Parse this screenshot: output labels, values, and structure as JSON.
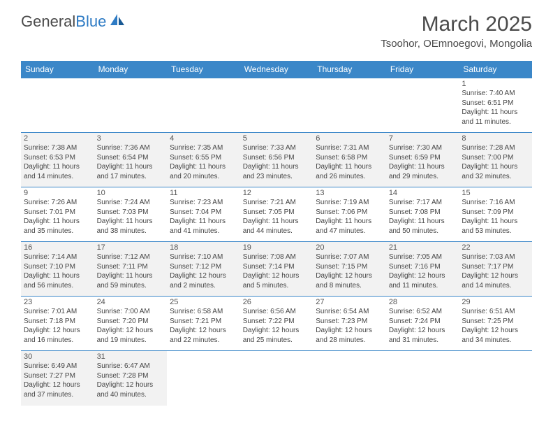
{
  "logo": {
    "text_general": "General",
    "text_blue": "Blue"
  },
  "header": {
    "month_title": "March 2025",
    "location": "Tsoohor, OEmnoegovi, Mongolia"
  },
  "colors": {
    "header_bg": "#3b87c8",
    "header_text": "#ffffff",
    "alt_bg": "#f2f2f2",
    "text": "#444444",
    "border": "#3b87c8"
  },
  "day_names": [
    "Sunday",
    "Monday",
    "Tuesday",
    "Wednesday",
    "Thursday",
    "Friday",
    "Saturday"
  ],
  "weeks": [
    [
      null,
      null,
      null,
      null,
      null,
      null,
      {
        "num": "1",
        "sunrise": "Sunrise: 7:40 AM",
        "sunset": "Sunset: 6:51 PM",
        "daylight": "Daylight: 11 hours and 11 minutes."
      }
    ],
    [
      {
        "num": "2",
        "sunrise": "Sunrise: 7:38 AM",
        "sunset": "Sunset: 6:53 PM",
        "daylight": "Daylight: 11 hours and 14 minutes."
      },
      {
        "num": "3",
        "sunrise": "Sunrise: 7:36 AM",
        "sunset": "Sunset: 6:54 PM",
        "daylight": "Daylight: 11 hours and 17 minutes."
      },
      {
        "num": "4",
        "sunrise": "Sunrise: 7:35 AM",
        "sunset": "Sunset: 6:55 PM",
        "daylight": "Daylight: 11 hours and 20 minutes."
      },
      {
        "num": "5",
        "sunrise": "Sunrise: 7:33 AM",
        "sunset": "Sunset: 6:56 PM",
        "daylight": "Daylight: 11 hours and 23 minutes."
      },
      {
        "num": "6",
        "sunrise": "Sunrise: 7:31 AM",
        "sunset": "Sunset: 6:58 PM",
        "daylight": "Daylight: 11 hours and 26 minutes."
      },
      {
        "num": "7",
        "sunrise": "Sunrise: 7:30 AM",
        "sunset": "Sunset: 6:59 PM",
        "daylight": "Daylight: 11 hours and 29 minutes."
      },
      {
        "num": "8",
        "sunrise": "Sunrise: 7:28 AM",
        "sunset": "Sunset: 7:00 PM",
        "daylight": "Daylight: 11 hours and 32 minutes."
      }
    ],
    [
      {
        "num": "9",
        "sunrise": "Sunrise: 7:26 AM",
        "sunset": "Sunset: 7:01 PM",
        "daylight": "Daylight: 11 hours and 35 minutes."
      },
      {
        "num": "10",
        "sunrise": "Sunrise: 7:24 AM",
        "sunset": "Sunset: 7:03 PM",
        "daylight": "Daylight: 11 hours and 38 minutes."
      },
      {
        "num": "11",
        "sunrise": "Sunrise: 7:23 AM",
        "sunset": "Sunset: 7:04 PM",
        "daylight": "Daylight: 11 hours and 41 minutes."
      },
      {
        "num": "12",
        "sunrise": "Sunrise: 7:21 AM",
        "sunset": "Sunset: 7:05 PM",
        "daylight": "Daylight: 11 hours and 44 minutes."
      },
      {
        "num": "13",
        "sunrise": "Sunrise: 7:19 AM",
        "sunset": "Sunset: 7:06 PM",
        "daylight": "Daylight: 11 hours and 47 minutes."
      },
      {
        "num": "14",
        "sunrise": "Sunrise: 7:17 AM",
        "sunset": "Sunset: 7:08 PM",
        "daylight": "Daylight: 11 hours and 50 minutes."
      },
      {
        "num": "15",
        "sunrise": "Sunrise: 7:16 AM",
        "sunset": "Sunset: 7:09 PM",
        "daylight": "Daylight: 11 hours and 53 minutes."
      }
    ],
    [
      {
        "num": "16",
        "sunrise": "Sunrise: 7:14 AM",
        "sunset": "Sunset: 7:10 PM",
        "daylight": "Daylight: 11 hours and 56 minutes."
      },
      {
        "num": "17",
        "sunrise": "Sunrise: 7:12 AM",
        "sunset": "Sunset: 7:11 PM",
        "daylight": "Daylight: 11 hours and 59 minutes."
      },
      {
        "num": "18",
        "sunrise": "Sunrise: 7:10 AM",
        "sunset": "Sunset: 7:12 PM",
        "daylight": "Daylight: 12 hours and 2 minutes."
      },
      {
        "num": "19",
        "sunrise": "Sunrise: 7:08 AM",
        "sunset": "Sunset: 7:14 PM",
        "daylight": "Daylight: 12 hours and 5 minutes."
      },
      {
        "num": "20",
        "sunrise": "Sunrise: 7:07 AM",
        "sunset": "Sunset: 7:15 PM",
        "daylight": "Daylight: 12 hours and 8 minutes."
      },
      {
        "num": "21",
        "sunrise": "Sunrise: 7:05 AM",
        "sunset": "Sunset: 7:16 PM",
        "daylight": "Daylight: 12 hours and 11 minutes."
      },
      {
        "num": "22",
        "sunrise": "Sunrise: 7:03 AM",
        "sunset": "Sunset: 7:17 PM",
        "daylight": "Daylight: 12 hours and 14 minutes."
      }
    ],
    [
      {
        "num": "23",
        "sunrise": "Sunrise: 7:01 AM",
        "sunset": "Sunset: 7:18 PM",
        "daylight": "Daylight: 12 hours and 16 minutes."
      },
      {
        "num": "24",
        "sunrise": "Sunrise: 7:00 AM",
        "sunset": "Sunset: 7:20 PM",
        "daylight": "Daylight: 12 hours and 19 minutes."
      },
      {
        "num": "25",
        "sunrise": "Sunrise: 6:58 AM",
        "sunset": "Sunset: 7:21 PM",
        "daylight": "Daylight: 12 hours and 22 minutes."
      },
      {
        "num": "26",
        "sunrise": "Sunrise: 6:56 AM",
        "sunset": "Sunset: 7:22 PM",
        "daylight": "Daylight: 12 hours and 25 minutes."
      },
      {
        "num": "27",
        "sunrise": "Sunrise: 6:54 AM",
        "sunset": "Sunset: 7:23 PM",
        "daylight": "Daylight: 12 hours and 28 minutes."
      },
      {
        "num": "28",
        "sunrise": "Sunrise: 6:52 AM",
        "sunset": "Sunset: 7:24 PM",
        "daylight": "Daylight: 12 hours and 31 minutes."
      },
      {
        "num": "29",
        "sunrise": "Sunrise: 6:51 AM",
        "sunset": "Sunset: 7:25 PM",
        "daylight": "Daylight: 12 hours and 34 minutes."
      }
    ],
    [
      {
        "num": "30",
        "sunrise": "Sunrise: 6:49 AM",
        "sunset": "Sunset: 7:27 PM",
        "daylight": "Daylight: 12 hours and 37 minutes."
      },
      {
        "num": "31",
        "sunrise": "Sunrise: 6:47 AM",
        "sunset": "Sunset: 7:28 PM",
        "daylight": "Daylight: 12 hours and 40 minutes."
      },
      null,
      null,
      null,
      null,
      null
    ]
  ]
}
